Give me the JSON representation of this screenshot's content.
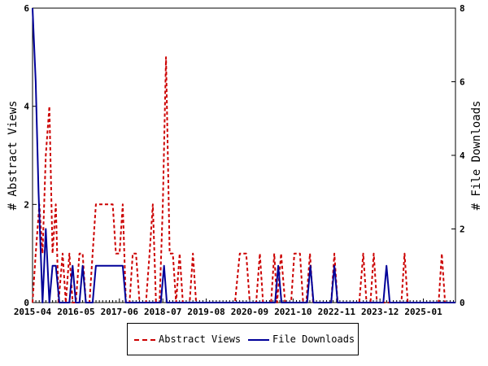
{
  "chart_data": {
    "type": "line",
    "x_ticks": [
      "2015-04",
      "2016-05",
      "2017-06",
      "2018-07",
      "2019-08",
      "2020-09",
      "2021-10",
      "2022-11",
      "2023-12",
      "2025-01"
    ],
    "x_range": [
      2015.25,
      2025.8
    ],
    "left_axis": {
      "label": "# Abstract Views",
      "range": [
        0,
        6
      ],
      "ticks": [
        0,
        2,
        4,
        6
      ]
    },
    "right_axis": {
      "label": "# File Downloads",
      "range": [
        0,
        8
      ],
      "ticks": [
        0,
        2,
        4,
        6,
        8
      ]
    },
    "grid": false,
    "legend_position": "bottom",
    "series": [
      {
        "name": "Abstract Views",
        "axis": "left",
        "color": "#cc0000",
        "dash": true,
        "points": [
          [
            2015.25,
            0
          ],
          [
            2015.33,
            1
          ],
          [
            2015.42,
            2
          ],
          [
            2015.5,
            1
          ],
          [
            2015.58,
            3
          ],
          [
            2015.67,
            4
          ],
          [
            2015.75,
            1
          ],
          [
            2015.83,
            2
          ],
          [
            2015.9,
            0
          ],
          [
            2016.0,
            1
          ],
          [
            2016.08,
            0
          ],
          [
            2016.17,
            1
          ],
          [
            2016.25,
            0
          ],
          [
            2016.33,
            0
          ],
          [
            2016.42,
            1
          ],
          [
            2016.5,
            1
          ],
          [
            2016.58,
            0
          ],
          [
            2016.67,
            0
          ],
          [
            2016.75,
            1
          ],
          [
            2016.83,
            2
          ],
          [
            2016.92,
            2
          ],
          [
            2017.0,
            2
          ],
          [
            2017.08,
            2
          ],
          [
            2017.17,
            2
          ],
          [
            2017.25,
            2
          ],
          [
            2017.33,
            1
          ],
          [
            2017.42,
            1
          ],
          [
            2017.5,
            2
          ],
          [
            2017.58,
            0
          ],
          [
            2017.67,
            0
          ],
          [
            2017.75,
            1
          ],
          [
            2017.83,
            1
          ],
          [
            2017.92,
            0
          ],
          [
            2018.0,
            0
          ],
          [
            2018.08,
            0
          ],
          [
            2018.17,
            1
          ],
          [
            2018.25,
            2
          ],
          [
            2018.33,
            0
          ],
          [
            2018.42,
            0
          ],
          [
            2018.5,
            2
          ],
          [
            2018.58,
            5
          ],
          [
            2018.67,
            1
          ],
          [
            2018.75,
            1
          ],
          [
            2018.83,
            0
          ],
          [
            2018.92,
            1
          ],
          [
            2019.0,
            0
          ],
          [
            2019.08,
            0
          ],
          [
            2019.17,
            0
          ],
          [
            2019.25,
            1
          ],
          [
            2019.33,
            0
          ],
          [
            2019.42,
            0
          ],
          [
            2020.3,
            0
          ],
          [
            2020.42,
            1
          ],
          [
            2020.5,
            1
          ],
          [
            2020.58,
            1
          ],
          [
            2020.67,
            0
          ],
          [
            2020.75,
            0
          ],
          [
            2020.83,
            0
          ],
          [
            2020.92,
            1
          ],
          [
            2021.0,
            0
          ],
          [
            2021.2,
            0
          ],
          [
            2021.28,
            1
          ],
          [
            2021.35,
            0
          ],
          [
            2021.45,
            1
          ],
          [
            2021.55,
            0
          ],
          [
            2021.7,
            0
          ],
          [
            2021.78,
            1
          ],
          [
            2021.92,
            1
          ],
          [
            2022.0,
            0
          ],
          [
            2022.08,
            0
          ],
          [
            2022.17,
            1
          ],
          [
            2022.25,
            0
          ],
          [
            2022.7,
            0
          ],
          [
            2022.78,
            1
          ],
          [
            2022.86,
            0
          ],
          [
            2023.4,
            0
          ],
          [
            2023.5,
            1
          ],
          [
            2023.58,
            0
          ],
          [
            2023.68,
            0
          ],
          [
            2023.76,
            1
          ],
          [
            2023.84,
            0
          ],
          [
            2024.45,
            0
          ],
          [
            2024.53,
            1
          ],
          [
            2024.61,
            0
          ],
          [
            2025.38,
            0
          ],
          [
            2025.46,
            1
          ],
          [
            2025.54,
            0
          ],
          [
            2025.8,
            0
          ]
        ]
      },
      {
        "name": "File Downloads",
        "axis": "right",
        "color": "#000099",
        "dash": false,
        "points": [
          [
            2015.25,
            8
          ],
          [
            2015.33,
            6
          ],
          [
            2015.4,
            3
          ],
          [
            2015.5,
            0
          ],
          [
            2015.58,
            2
          ],
          [
            2015.67,
            0
          ],
          [
            2015.75,
            1
          ],
          [
            2015.83,
            1
          ],
          [
            2015.92,
            0
          ],
          [
            2016.0,
            0
          ],
          [
            2016.08,
            0
          ],
          [
            2016.17,
            0
          ],
          [
            2016.25,
            1
          ],
          [
            2016.33,
            0
          ],
          [
            2016.42,
            0
          ],
          [
            2016.5,
            1
          ],
          [
            2016.58,
            0
          ],
          [
            2016.67,
            0
          ],
          [
            2016.75,
            0
          ],
          [
            2016.83,
            1
          ],
          [
            2016.92,
            1
          ],
          [
            2017.0,
            1
          ],
          [
            2017.08,
            1
          ],
          [
            2017.17,
            1
          ],
          [
            2017.25,
            1
          ],
          [
            2017.33,
            1
          ],
          [
            2017.42,
            1
          ],
          [
            2017.5,
            1
          ],
          [
            2017.58,
            0
          ],
          [
            2017.67,
            0
          ],
          [
            2017.75,
            0
          ],
          [
            2018.3,
            0
          ],
          [
            2018.45,
            0
          ],
          [
            2018.53,
            1
          ],
          [
            2018.6,
            0
          ],
          [
            2020.6,
            0
          ],
          [
            2021.3,
            0
          ],
          [
            2021.38,
            1
          ],
          [
            2021.46,
            0
          ],
          [
            2021.8,
            0
          ],
          [
            2022.1,
            0
          ],
          [
            2022.18,
            1
          ],
          [
            2022.26,
            0
          ],
          [
            2022.7,
            0
          ],
          [
            2022.78,
            1
          ],
          [
            2022.86,
            0
          ],
          [
            2023.3,
            0
          ],
          [
            2024.0,
            0
          ],
          [
            2024.08,
            1
          ],
          [
            2024.16,
            0
          ],
          [
            2025.8,
            0
          ]
        ]
      }
    ]
  }
}
